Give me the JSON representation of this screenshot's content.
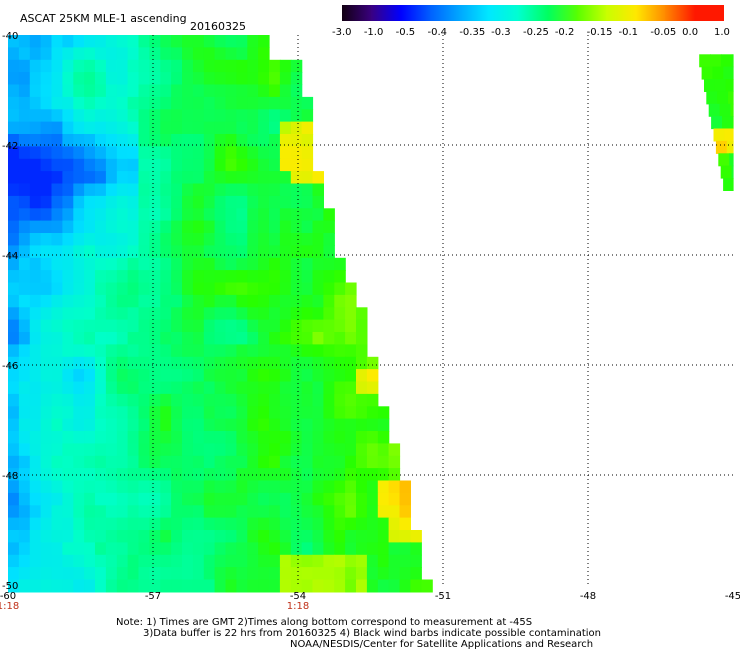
{
  "title": "ASCAT 25KM MLE-1 ascending",
  "date": "20160325",
  "colorbar": {
    "labels": [
      "-3.0",
      "-1.0",
      "-0.5",
      "-0.4",
      "-0.35",
      "-0.3",
      "-0.25",
      "-0.2",
      "-0.15",
      "-0.1",
      "-0.05",
      "0.0",
      "1.0"
    ],
    "colors": [
      "#120012",
      "#3a0080",
      "#0000ff",
      "#0060ff",
      "#00a8ff",
      "#00e8ff",
      "#00ffd0",
      "#00ff60",
      "#58ff00",
      "#c8ff00",
      "#ffe800",
      "#ff8800",
      "#ff1800"
    ]
  },
  "chart_data": {
    "type": "heatmap",
    "variable": "MLE-1",
    "x_ticks": [
      "-60",
      "-57",
      "-54",
      "-51",
      "-48",
      "-45"
    ],
    "y_ticks": [
      "-40",
      "-42",
      "-44",
      "-46",
      "-48",
      "-50"
    ],
    "xlim": [
      -60,
      -45
    ],
    "ylim": [
      -50,
      -40
    ],
    "grid": true,
    "time_labels": [
      {
        "lon": -60,
        "text": "1:18"
      },
      {
        "lon": -54,
        "text": "1:18"
      }
    ],
    "swaths": [
      {
        "name": "main",
        "lon_range": [
          -60,
          -51.3
        ],
        "lat_range": [
          -50,
          -40
        ],
        "dominant_value_range": [
          -0.3,
          -0.1
        ]
      },
      {
        "name": "right",
        "lon_range": [
          -45.6,
          -45
        ],
        "lat_range": [
          -42.8,
          -40.4
        ],
        "dominant_value_range": [
          -0.15,
          0.0
        ]
      }
    ]
  },
  "notes": {
    "line1": "Note: 1) Times are GMT 2)Times along bottom correspond to measurement at -45S",
    "line2": "3)Data buffer is 22 hrs from 20160325 4) Black wind barbs indicate possible contamination",
    "line3": "NOAA/NESDIS/Center for Satellite Applications and Research"
  }
}
